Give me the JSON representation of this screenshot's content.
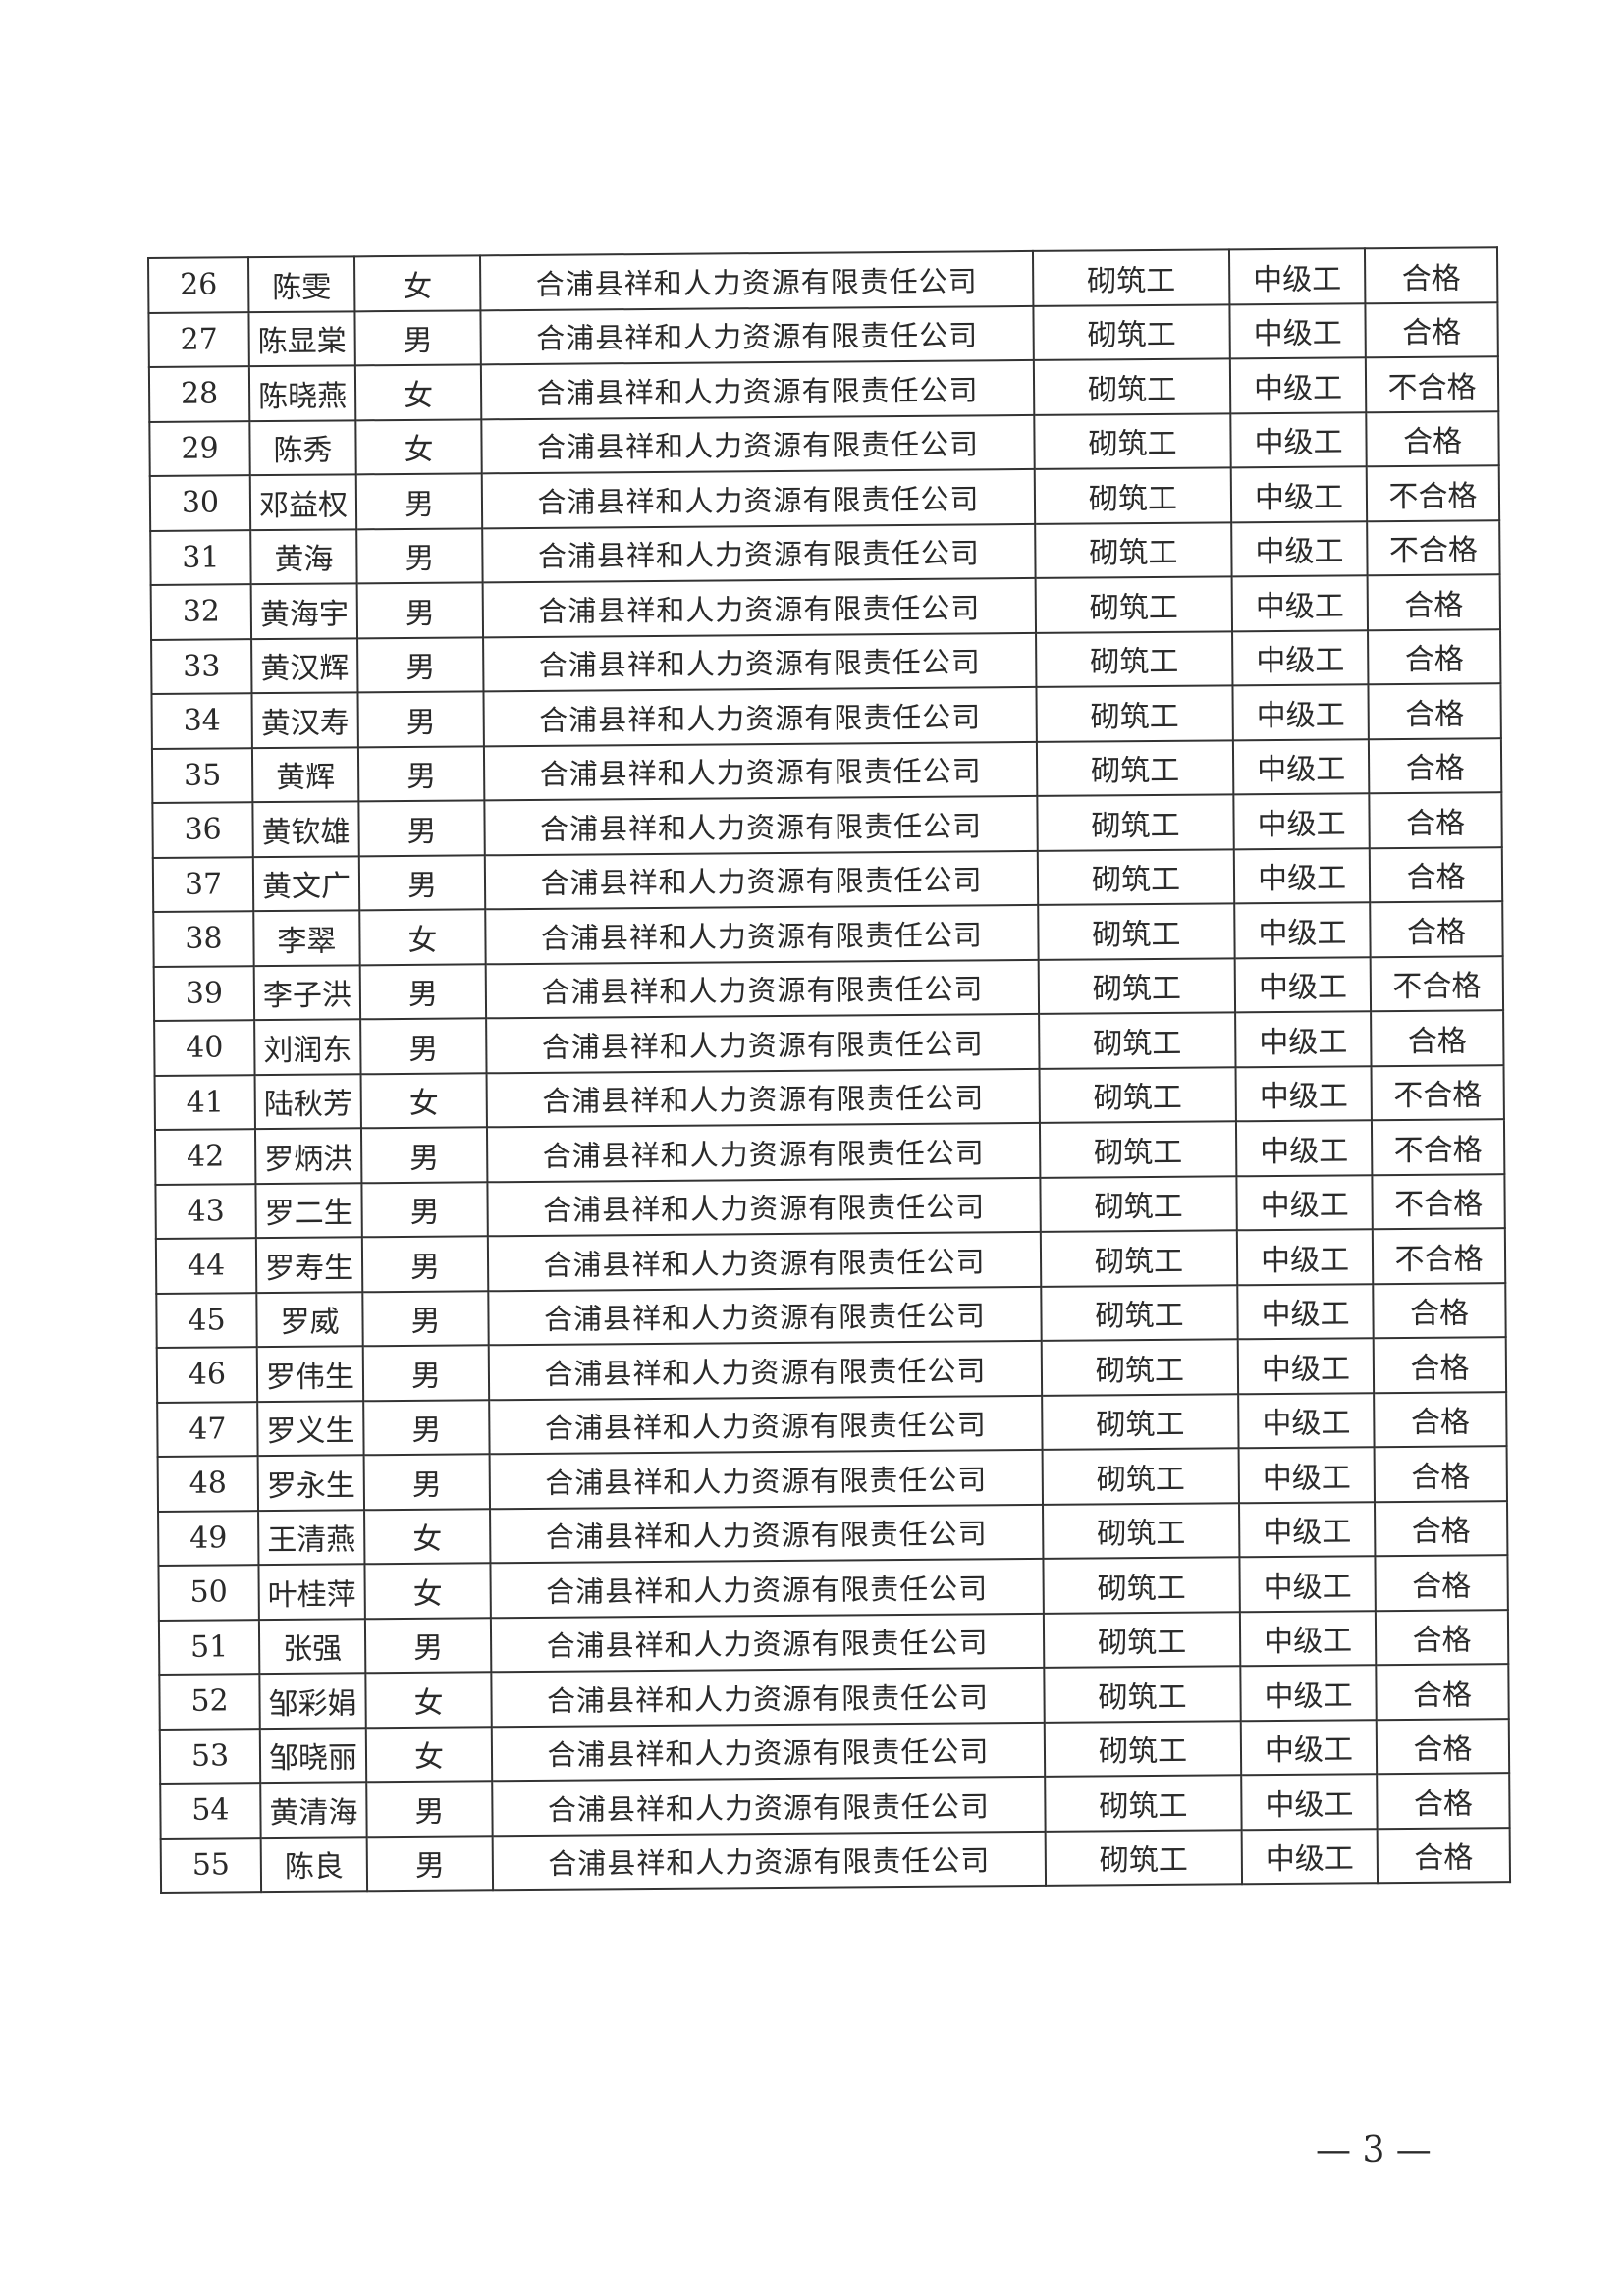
{
  "table": {
    "rows": [
      [
        "26",
        "陈雯",
        "女",
        "合浦县祥和人力资源有限责任公司",
        "砌筑工",
        "中级工",
        "合格"
      ],
      [
        "27",
        "陈显棠",
        "男",
        "合浦县祥和人力资源有限责任公司",
        "砌筑工",
        "中级工",
        "合格"
      ],
      [
        "28",
        "陈晓燕",
        "女",
        "合浦县祥和人力资源有限责任公司",
        "砌筑工",
        "中级工",
        "不合格"
      ],
      [
        "29",
        "陈秀",
        "女",
        "合浦县祥和人力资源有限责任公司",
        "砌筑工",
        "中级工",
        "合格"
      ],
      [
        "30",
        "邓益权",
        "男",
        "合浦县祥和人力资源有限责任公司",
        "砌筑工",
        "中级工",
        "不合格"
      ],
      [
        "31",
        "黄海",
        "男",
        "合浦县祥和人力资源有限责任公司",
        "砌筑工",
        "中级工",
        "不合格"
      ],
      [
        "32",
        "黄海宇",
        "男",
        "合浦县祥和人力资源有限责任公司",
        "砌筑工",
        "中级工",
        "合格"
      ],
      [
        "33",
        "黄汉辉",
        "男",
        "合浦县祥和人力资源有限责任公司",
        "砌筑工",
        "中级工",
        "合格"
      ],
      [
        "34",
        "黄汉寿",
        "男",
        "合浦县祥和人力资源有限责任公司",
        "砌筑工",
        "中级工",
        "合格"
      ],
      [
        "35",
        "黄辉",
        "男",
        "合浦县祥和人力资源有限责任公司",
        "砌筑工",
        "中级工",
        "合格"
      ],
      [
        "36",
        "黄钦雄",
        "男",
        "合浦县祥和人力资源有限责任公司",
        "砌筑工",
        "中级工",
        "合格"
      ],
      [
        "37",
        "黄文广",
        "男",
        "合浦县祥和人力资源有限责任公司",
        "砌筑工",
        "中级工",
        "合格"
      ],
      [
        "38",
        "李翠",
        "女",
        "合浦县祥和人力资源有限责任公司",
        "砌筑工",
        "中级工",
        "合格"
      ],
      [
        "39",
        "李子洪",
        "男",
        "合浦县祥和人力资源有限责任公司",
        "砌筑工",
        "中级工",
        "不合格"
      ],
      [
        "40",
        "刘润东",
        "男",
        "合浦县祥和人力资源有限责任公司",
        "砌筑工",
        "中级工",
        "合格"
      ],
      [
        "41",
        "陆秋芳",
        "女",
        "合浦县祥和人力资源有限责任公司",
        "砌筑工",
        "中级工",
        "不合格"
      ],
      [
        "42",
        "罗炳洪",
        "男",
        "合浦县祥和人力资源有限责任公司",
        "砌筑工",
        "中级工",
        "不合格"
      ],
      [
        "43",
        "罗二生",
        "男",
        "合浦县祥和人力资源有限责任公司",
        "砌筑工",
        "中级工",
        "不合格"
      ],
      [
        "44",
        "罗寿生",
        "男",
        "合浦县祥和人力资源有限责任公司",
        "砌筑工",
        "中级工",
        "不合格"
      ],
      [
        "45",
        "罗威",
        "男",
        "合浦县祥和人力资源有限责任公司",
        "砌筑工",
        "中级工",
        "合格"
      ],
      [
        "46",
        "罗伟生",
        "男",
        "合浦县祥和人力资源有限责任公司",
        "砌筑工",
        "中级工",
        "合格"
      ],
      [
        "47",
        "罗义生",
        "男",
        "合浦县祥和人力资源有限责任公司",
        "砌筑工",
        "中级工",
        "合格"
      ],
      [
        "48",
        "罗永生",
        "男",
        "合浦县祥和人力资源有限责任公司",
        "砌筑工",
        "中级工",
        "合格"
      ],
      [
        "49",
        "王清燕",
        "女",
        "合浦县祥和人力资源有限责任公司",
        "砌筑工",
        "中级工",
        "合格"
      ],
      [
        "50",
        "叶桂萍",
        "女",
        "合浦县祥和人力资源有限责任公司",
        "砌筑工",
        "中级工",
        "合格"
      ],
      [
        "51",
        "张强",
        "男",
        "合浦县祥和人力资源有限责任公司",
        "砌筑工",
        "中级工",
        "合格"
      ],
      [
        "52",
        "邹彩娟",
        "女",
        "合浦县祥和人力资源有限责任公司",
        "砌筑工",
        "中级工",
        "合格"
      ],
      [
        "53",
        "邹晓丽",
        "女",
        "合浦县祥和人力资源有限责任公司",
        "砌筑工",
        "中级工",
        "合格"
      ],
      [
        "54",
        "黄清海",
        "男",
        "合浦县祥和人力资源有限责任公司",
        "砌筑工",
        "中级工",
        "合格"
      ],
      [
        "55",
        "陈良",
        "男",
        "合浦县祥和人力资源有限责任公司",
        "砌筑工",
        "中级工",
        "合格"
      ]
    ]
  },
  "page_number": "— 3 —"
}
